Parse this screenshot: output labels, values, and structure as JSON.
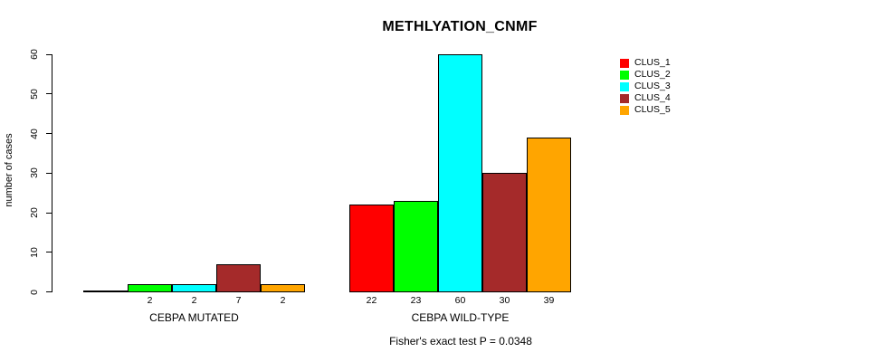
{
  "chart_data": {
    "type": "bar",
    "title": "METHLYATION_CNMF",
    "categories": [
      "CEBPA MUTATED",
      "CEBPA WILD-TYPE"
    ],
    "series": [
      {
        "name": "CLUS_1",
        "color": "#FF0000",
        "values": [
          0,
          22
        ]
      },
      {
        "name": "CLUS_2",
        "color": "#00FF00",
        "values": [
          2,
          23
        ]
      },
      {
        "name": "CLUS_3",
        "color": "#00FFFF",
        "values": [
          2,
          60
        ]
      },
      {
        "name": "CLUS_4",
        "color": "#A52A2A",
        "values": [
          7,
          30
        ]
      },
      {
        "name": "CLUS_5",
        "color": "#FFA500",
        "values": [
          2,
          39
        ]
      }
    ],
    "xlabel": "",
    "ylabel": "number of cases",
    "ylim": [
      0,
      60
    ],
    "yticks": [
      0,
      10,
      20,
      30,
      40,
      50,
      60
    ],
    "grid": false,
    "legend_position": "right",
    "bar_value_labels_shown": true,
    "zero_bars_unlabeled": true,
    "annotation": "Fisher's exact test P = 0.0348",
    "axis_color": "#000000",
    "bar_border_color": "#000000"
  }
}
